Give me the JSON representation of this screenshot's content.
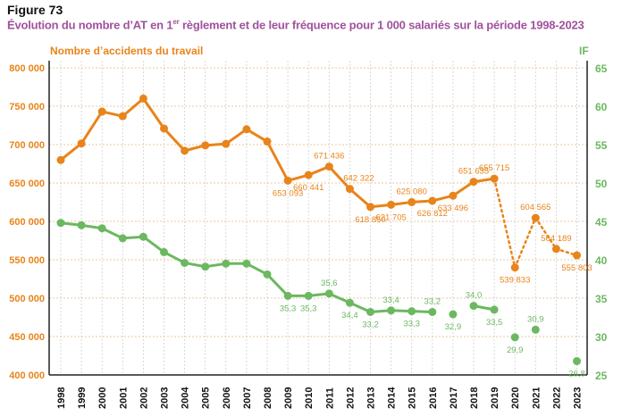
{
  "figure_label": "Figure 73",
  "title_parts": {
    "before": "Évolution du nombre d’AT en 1",
    "sup": "er",
    "after": " règlement et de leur fréquence pour 1 000 salariés sur la période 1998-2023"
  },
  "colors": {
    "orange": "#e8841a",
    "green": "#6bb860",
    "title": "#a0529c",
    "grid": "#d0d0d0"
  },
  "chart_data": {
    "type": "line",
    "title": "Évolution du nombre d’AT en 1er règlement et de leur fréquence pour 1 000 salariés sur la période 1998-2023",
    "x": [
      "1998",
      "1999",
      "2000",
      "2001",
      "2002",
      "2003",
      "2004",
      "2005",
      "2006",
      "2007",
      "2008",
      "2009",
      "2010",
      "2011",
      "2012",
      "2013",
      "2014",
      "2015",
      "2016",
      "2017",
      "2018",
      "2019",
      "2020",
      "2021",
      "2022",
      "2023"
    ],
    "ylabel": "Nombre d’accidents du travail",
    "y2label": "IF",
    "ylim": [
      400000,
      800000
    ],
    "y2lim": [
      25,
      65
    ],
    "yticks": [
      "400 000",
      "450 000",
      "500 000",
      "550 000",
      "600 000",
      "650 000",
      "700 000",
      "750 000",
      "800 000"
    ],
    "y2ticks": [
      "25",
      "30",
      "35",
      "40",
      "45",
      "50",
      "55",
      "60",
      "65"
    ],
    "grid": true,
    "series": [
      {
        "name": "Nombre d’accidents du travail",
        "axis": "left",
        "values": [
          680000,
          701500,
          743000,
          737000,
          760000,
          721000,
          692000,
          699000,
          701000,
          720000,
          704000,
          653093,
          660441,
          671436,
          642322,
          618850,
          621705,
          625080,
          626812,
          633496,
          651635,
          655715,
          539833,
          604565,
          564189,
          555803
        ],
        "labels": [
          null,
          null,
          null,
          null,
          null,
          null,
          null,
          null,
          null,
          null,
          null,
          "653 093",
          "660 441",
          "671 436",
          "642 322",
          "618 850",
          "621 705",
          "625 080",
          "626 812",
          "633 496",
          "651 635",
          "655 715",
          "539 833",
          "604 565",
          "564 189",
          "555 803"
        ]
      },
      {
        "name": "IF",
        "axis": "right",
        "values": [
          44.8,
          44.5,
          44.1,
          42.8,
          43.0,
          41.0,
          39.6,
          39.1,
          39.5,
          39.5,
          38.1,
          35.3,
          35.3,
          35.6,
          34.4,
          33.2,
          33.4,
          33.3,
          33.2,
          32.9,
          34.0,
          33.5,
          29.9,
          30.9,
          null,
          26.8
        ],
        "labels": [
          null,
          null,
          null,
          null,
          null,
          null,
          null,
          null,
          null,
          null,
          null,
          "35,3",
          "35,3",
          "35,6",
          "34,4",
          "33,2",
          "33,4",
          "33,3",
          "33,2",
          "32,9",
          "34,0",
          "33,5",
          "29,9",
          "30,9",
          null,
          "26,8"
        ]
      }
    ]
  }
}
